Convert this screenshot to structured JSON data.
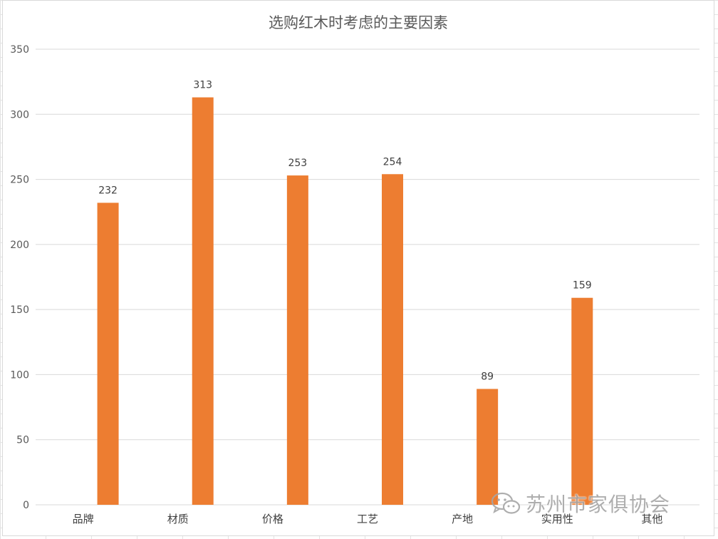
{
  "chart_data": {
    "type": "bar",
    "title": "选购红木时考虑的主要因素",
    "categories": [
      "品牌",
      "材质",
      "价格",
      "工艺",
      "产地",
      "实用性",
      "其他"
    ],
    "values": [
      232,
      313,
      253,
      254,
      89,
      159,
      0
    ],
    "data_labels": [
      "232",
      "313",
      "253",
      "254",
      "89",
      "159",
      ""
    ],
    "ylim": [
      0,
      350
    ],
    "yticks": [
      0,
      50,
      100,
      150,
      200,
      250,
      300,
      350
    ],
    "grid": true,
    "legend": "none",
    "bar_color": "#ED7D31",
    "grid_color": "#d9d9d9",
    "xlabel": "",
    "ylabel": ""
  },
  "watermark": {
    "text": "苏州市家俱协会",
    "icon": "wechat-icon"
  }
}
